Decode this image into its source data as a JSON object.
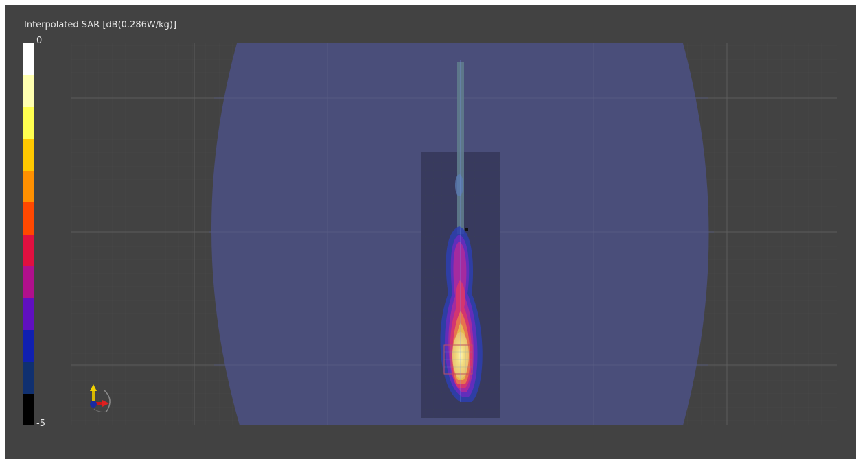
{
  "viewer": {
    "background_color": "#424242",
    "title": "Interpolated SAR [dB(0.286W/kg)]"
  },
  "colorbar": {
    "max_label": "0",
    "min_label": "-5",
    "colors_top_to_bottom": [
      "#ffffff",
      "#ffffb0",
      "#ffff50",
      "#ffc800",
      "#ff9000",
      "#ff4800",
      "#e01040",
      "#b0108c",
      "#6010c0",
      "#1020b0",
      "#103070",
      "#000000"
    ]
  },
  "scene": {
    "phantom_color": "#4a4e7a",
    "grid_color": "#5a5a6a"
  },
  "axes_icons": {
    "y": "y-axis-arrow-icon",
    "x": "x-axis-arrow-icon",
    "z": "z-axis-dot-icon"
  }
}
